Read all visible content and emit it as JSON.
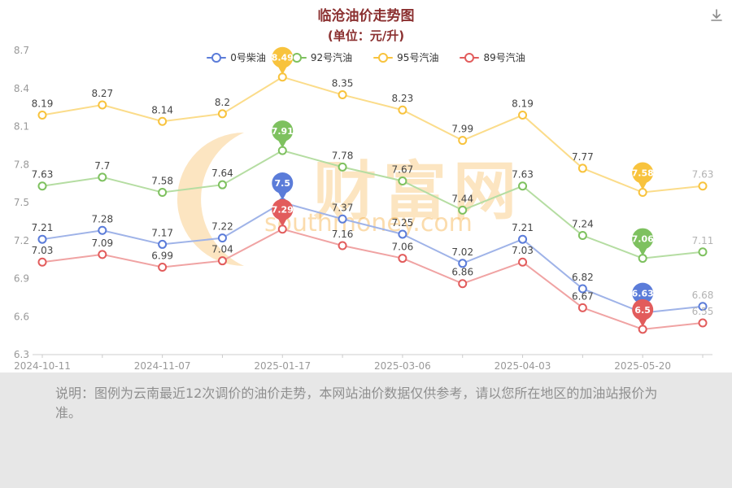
{
  "header": {
    "title": "临沧油价走势图",
    "subtitle": "(单位：元/升)"
  },
  "toolbar": {
    "download_icon": "download-icon"
  },
  "legend": [
    {
      "label": "0号柴油",
      "color": "#5b7cd9"
    },
    {
      "label": "92号汽油",
      "color": "#7ec15f"
    },
    {
      "label": "95号汽油",
      "color": "#f8c33d"
    },
    {
      "label": "89号汽油",
      "color": "#e25c5c"
    }
  ],
  "chart_data": {
    "type": "line",
    "title": "临沧油价走势图",
    "unit": "元/升",
    "x_labels": [
      "2024-10-11",
      "2024-11-07",
      "2025-01-17",
      "2025-03-06",
      "2025-04-03",
      "2025-05-20"
    ],
    "x_label_indices": [
      0,
      2,
      4,
      6,
      8,
      10
    ],
    "num_points": 12,
    "y_ticks": [
      6.3,
      6.6,
      6.9,
      7.2,
      7.5,
      7.8,
      8.1,
      8.4,
      8.7
    ],
    "ylim": [
      6.3,
      8.7
    ],
    "grid": false,
    "legend_position": "top",
    "highlight_indices": [
      4,
      10
    ],
    "series": [
      {
        "name": "95号汽油",
        "color": "#f8c33d",
        "line_color": "#fbdc8a",
        "values": [
          8.19,
          8.27,
          8.14,
          8.2,
          8.49,
          8.35,
          8.23,
          7.99,
          8.19,
          7.77,
          7.58,
          7.63
        ]
      },
      {
        "name": "92号汽油",
        "color": "#7ec15f",
        "line_color": "#b5dda2",
        "values": [
          7.63,
          7.7,
          7.58,
          7.64,
          7.91,
          7.78,
          7.67,
          7.44,
          7.63,
          7.24,
          7.06,
          7.11
        ]
      },
      {
        "name": "0号柴油",
        "color": "#5b7cd9",
        "line_color": "#9fb3e8",
        "values": [
          7.21,
          7.28,
          7.17,
          7.22,
          7.5,
          7.37,
          7.25,
          7.02,
          7.21,
          6.82,
          6.63,
          6.68
        ]
      },
      {
        "name": "89号汽油",
        "color": "#e25c5c",
        "line_color": "#f0a3a3",
        "values": [
          7.03,
          7.09,
          6.99,
          7.04,
          7.29,
          7.16,
          7.06,
          6.86,
          7.03,
          6.67,
          6.5,
          6.55
        ]
      }
    ],
    "label_color": "#454545",
    "last_label_color": "#b3b3b3",
    "axis_color": "#cccccc"
  },
  "watermark": {
    "text": "财富网",
    "subtext": "southmoney.com",
    "color": "#f6a832"
  },
  "footer": {
    "note": "说明：图例为云南最近12次调价的油价走势，本网站油价数据仅供参考，请以您所在地区的加油站报价为准。"
  }
}
